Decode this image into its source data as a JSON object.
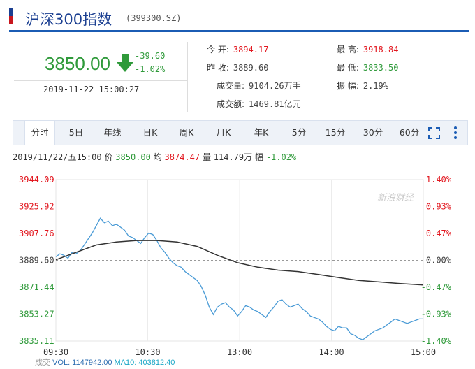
{
  "header": {
    "title": "沪深300指数",
    "code": "(399300.SZ)"
  },
  "quote": {
    "price": "3850.00",
    "change": "-39.60",
    "change_pct": "-1.02%",
    "time": "2019-11-22 15:00:27",
    "fields": [
      {
        "label": "今    开:",
        "value": "3894.17",
        "tone": "red"
      },
      {
        "label": "最    高:",
        "value": "3918.84",
        "tone": "red"
      },
      {
        "label": "昨    收:",
        "value": "3889.60",
        "tone": "plain"
      },
      {
        "label": "最    低:",
        "value": "3833.50",
        "tone": "green"
      },
      {
        "label": "成交量:",
        "value": "9104.26万手",
        "tone": "plain"
      },
      {
        "label": "振    幅:",
        "value": "2.19%",
        "tone": "plain"
      },
      {
        "label": "成交额:",
        "value": "1469.81亿元",
        "tone": "plain"
      }
    ]
  },
  "tabs": [
    "分时",
    "5日",
    "年线",
    "日K",
    "周K",
    "月K",
    "年K",
    "5分",
    "15分",
    "30分",
    "60分"
  ],
  "active_tab": "分时",
  "infobar": {
    "datetime": "2019/11/22/五15:00",
    "price_label": "价",
    "price": "3850.00",
    "avg_label": "均",
    "avg": "3874.47",
    "vol_label": "量",
    "vol": "114.79万",
    "amp_label": "幅",
    "amp": "-1.02%"
  },
  "volume_bar": {
    "label": "成交",
    "vol": "VOL: 1147942.00",
    "ma10": "MA10: 403812.40"
  },
  "watermark": "新浪财经",
  "colors": {
    "up": "#e2171f",
    "down": "#2f9a3a",
    "price_line": "#4a9bd6",
    "avg_line": "#333333",
    "brand": "#1b3f91"
  },
  "chart_data": {
    "type": "line",
    "xlabel": "",
    "ylabel": "",
    "x_ticks": [
      "09:30",
      "10:30",
      "13:00",
      "14:00",
      "15:00"
    ],
    "y_ticks_left": [
      "3944.09",
      "3925.92",
      "3907.76",
      "3889.60",
      "3871.44",
      "3853.27",
      "3835.11"
    ],
    "y_ticks_right": [
      "1.40%",
      "0.93%",
      "0.47%",
      "0.00%",
      "-0.47%",
      "-0.93%",
      "-1.40%"
    ],
    "ylim": [
      3835.11,
      3944.09
    ],
    "prev_close": 3889.6,
    "series": [
      {
        "values": [
          [
            0,
            3892
          ],
          [
            2,
            3894
          ],
          [
            4,
            3893
          ],
          [
            6,
            3891
          ],
          [
            8,
            3895
          ],
          [
            10,
            3894
          ],
          [
            12,
            3896
          ],
          [
            14,
            3900
          ],
          [
            16,
            3904
          ],
          [
            18,
            3908
          ],
          [
            20,
            3913
          ],
          [
            22,
            3918
          ],
          [
            24,
            3915
          ],
          [
            26,
            3916
          ],
          [
            28,
            3913
          ],
          [
            30,
            3914
          ],
          [
            32,
            3912
          ],
          [
            34,
            3910
          ],
          [
            36,
            3906
          ],
          [
            38,
            3905
          ],
          [
            40,
            3903
          ],
          [
            42,
            3901
          ],
          [
            44,
            3905
          ],
          [
            46,
            3908
          ],
          [
            48,
            3907
          ],
          [
            50,
            3903
          ],
          [
            52,
            3898
          ],
          [
            54,
            3895
          ],
          [
            56,
            3891
          ],
          [
            58,
            3888
          ],
          [
            60,
            3886
          ],
          [
            62,
            3885
          ],
          [
            64,
            3882
          ],
          [
            66,
            3880
          ],
          [
            68,
            3878
          ],
          [
            70,
            3876
          ],
          [
            72,
            3872
          ],
          [
            74,
            3866
          ],
          [
            76,
            3858
          ],
          [
            78,
            3853
          ],
          [
            80,
            3858
          ],
          [
            82,
            3860
          ],
          [
            84,
            3861
          ],
          [
            86,
            3858
          ],
          [
            88,
            3856
          ],
          [
            90,
            3852
          ],
          [
            92,
            3855
          ],
          [
            94,
            3859
          ],
          [
            96,
            3858
          ],
          [
            98,
            3856
          ],
          [
            100,
            3855
          ],
          [
            102,
            3853
          ],
          [
            104,
            3851
          ],
          [
            106,
            3855
          ],
          [
            108,
            3858
          ],
          [
            110,
            3862
          ],
          [
            112,
            3863
          ],
          [
            114,
            3860
          ],
          [
            116,
            3858
          ],
          [
            118,
            3859
          ],
          [
            120,
            3860
          ],
          [
            122,
            3857
          ],
          [
            124,
            3855
          ],
          [
            126,
            3852
          ],
          [
            128,
            3851
          ],
          [
            130,
            3850
          ],
          [
            132,
            3848
          ],
          [
            134,
            3845
          ],
          [
            136,
            3843
          ],
          [
            138,
            3842
          ],
          [
            140,
            3845
          ],
          [
            142,
            3844
          ],
          [
            144,
            3844
          ],
          [
            146,
            3840
          ],
          [
            148,
            3839
          ],
          [
            150,
            3837
          ],
          [
            152,
            3836
          ],
          [
            154,
            3838
          ],
          [
            156,
            3840
          ],
          [
            158,
            3842
          ],
          [
            160,
            3843
          ],
          [
            162,
            3844
          ],
          [
            164,
            3846
          ],
          [
            166,
            3848
          ],
          [
            168,
            3850
          ],
          [
            170,
            3849
          ],
          [
            172,
            3848
          ],
          [
            174,
            3847
          ],
          [
            176,
            3848
          ],
          [
            178,
            3849
          ],
          [
            180,
            3850
          ],
          [
            182,
            3850
          ]
        ]
      },
      {
        "values": [
          [
            0,
            3890
          ],
          [
            10,
            3895
          ],
          [
            20,
            3900
          ],
          [
            30,
            3902
          ],
          [
            40,
            3903
          ],
          [
            50,
            3903
          ],
          [
            60,
            3902
          ],
          [
            70,
            3899
          ],
          [
            80,
            3893
          ],
          [
            90,
            3888
          ],
          [
            100,
            3885
          ],
          [
            110,
            3883
          ],
          [
            120,
            3882
          ],
          [
            130,
            3880
          ],
          [
            140,
            3878
          ],
          [
            150,
            3876
          ],
          [
            160,
            3875
          ],
          [
            170,
            3874
          ],
          [
            182,
            3873
          ]
        ]
      }
    ]
  }
}
